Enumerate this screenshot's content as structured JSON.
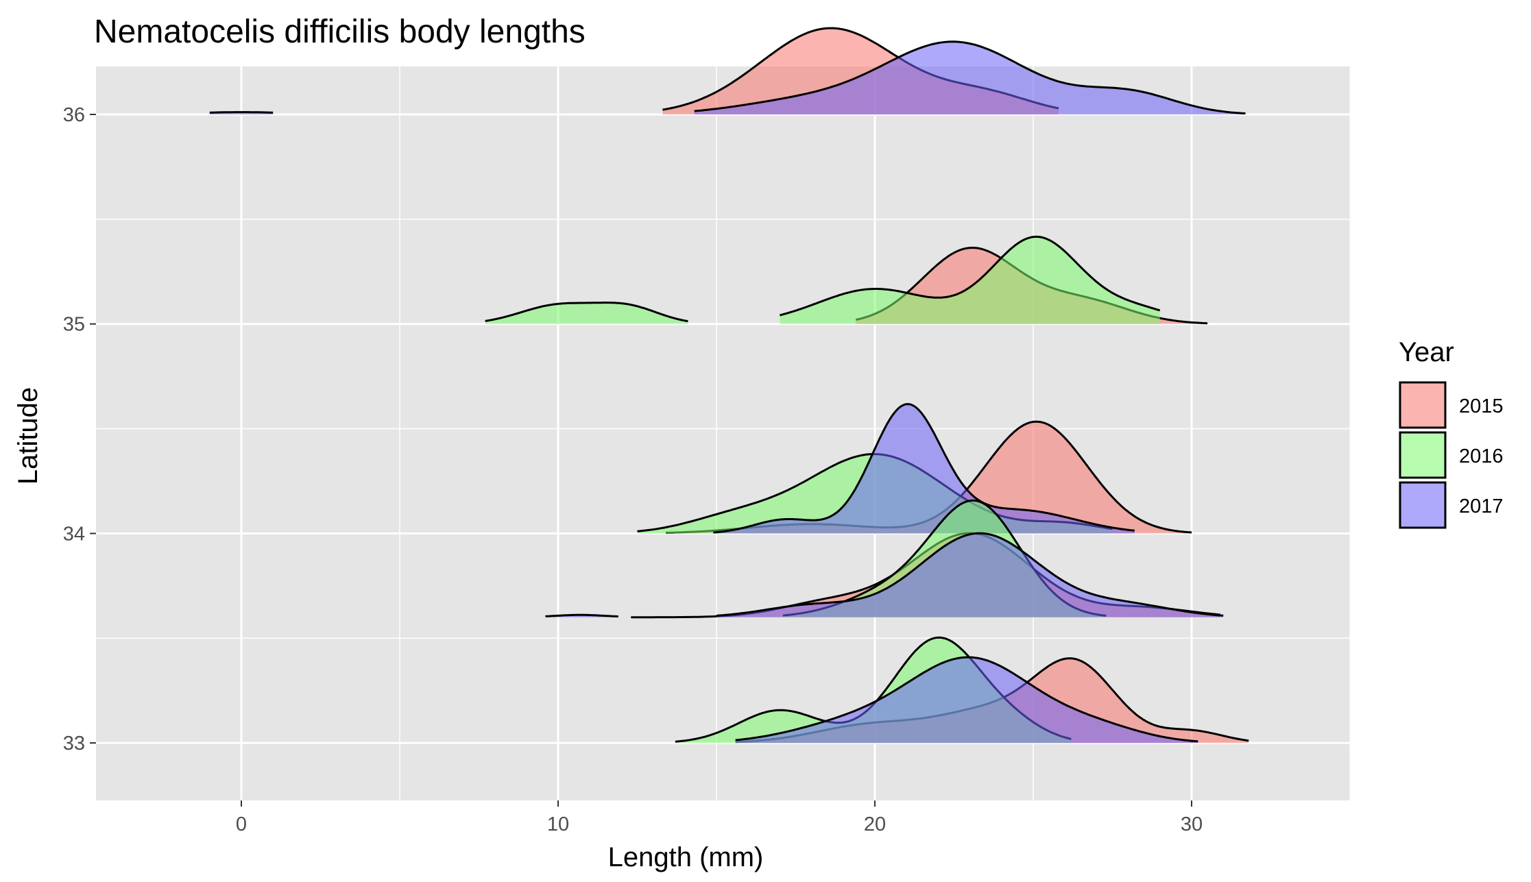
{
  "chart_data": {
    "type": "ridgeline",
    "title": "Nematocelis difficilis body lengths",
    "xlabel": "Length (mm)",
    "ylabel": "Latitude",
    "xlim": [
      -4.5,
      35
    ],
    "ylim": [
      32.7,
      36.25
    ],
    "x_ticks": [
      0,
      10,
      20,
      30
    ],
    "y_ticks": [
      33,
      34,
      35,
      36
    ],
    "grid": true,
    "legend": {
      "title": "Year",
      "position": "right",
      "entries": [
        "2015",
        "2016",
        "2017"
      ]
    },
    "colors": {
      "2015": "#F8766D",
      "2016": "#7CF96E",
      "2017": "#6C63F8",
      "panel_bg": "#E5E5E5"
    },
    "series": [
      {
        "group": "36",
        "year": "2015",
        "range": [
          13.3,
          25.8
        ],
        "peaks": [
          [
            18.6,
            0.37,
            2.2
          ],
          [
            23.5,
            0.08,
            1.5
          ]
        ]
      },
      {
        "group": "36",
        "year": "2017",
        "range": [
          14.3,
          31.7
        ],
        "peaks": [
          [
            17.5,
            0.05,
            2.0
          ],
          [
            22.5,
            0.31,
            2.3
          ],
          [
            28.0,
            0.09,
            1.5
          ]
        ]
      },
      {
        "group": "36",
        "year": "2017",
        "range": [
          -1.0,
          1.0
        ],
        "peaks": [
          [
            0.0,
            0.01,
            1.5
          ]
        ]
      },
      {
        "group": "35",
        "year": "2015",
        "range": [
          19.4,
          30.5
        ],
        "peaks": [
          [
            23.0,
            0.32,
            1.5
          ],
          [
            26.5,
            0.1,
            1.5
          ]
        ]
      },
      {
        "group": "35",
        "year": "2016",
        "range": [
          7.7,
          14.1
        ],
        "peaks": [
          [
            10.0,
            0.08,
            1.2
          ],
          [
            12.2,
            0.07,
            1.0
          ]
        ]
      },
      {
        "group": "35",
        "year": "2016",
        "range": [
          17.0,
          29.0
        ],
        "peaks": [
          [
            20.0,
            0.15,
            1.8
          ],
          [
            25.1,
            0.37,
            1.4
          ],
          [
            28.3,
            0.06,
            1.2
          ]
        ]
      },
      {
        "group": "34",
        "year": "2015",
        "range": [
          13.4,
          30.0
        ],
        "peaks": [
          [
            18.0,
            0.04,
            2.0
          ],
          [
            25.1,
            0.48,
            1.6
          ]
        ]
      },
      {
        "group": "34",
        "year": "2016",
        "range": [
          12.5,
          27.5
        ],
        "peaks": [
          [
            15.5,
            0.06,
            1.5
          ],
          [
            20.0,
            0.34,
            2.2
          ],
          [
            26.0,
            0.04,
            1.2
          ]
        ]
      },
      {
        "group": "34",
        "year": "2017",
        "range": [
          14.9,
          28.2
        ],
        "peaks": [
          [
            17.2,
            0.06,
            1.0
          ],
          [
            21.0,
            0.54,
            1.1
          ],
          [
            24.5,
            0.1,
            1.8
          ]
        ]
      },
      {
        "group": "33.6",
        "year": "2015",
        "range": [
          12.3,
          30.9
        ],
        "peaks": [
          [
            18.5,
            0.06,
            1.5
          ],
          [
            23.0,
            0.36,
            1.9
          ],
          [
            28.5,
            0.04,
            1.5
          ]
        ]
      },
      {
        "group": "33.6",
        "year": "2016",
        "range": [
          17.1,
          27.3
        ],
        "peaks": [
          [
            20.5,
            0.1,
            1.5
          ],
          [
            23.2,
            0.48,
            1.4
          ]
        ]
      },
      {
        "group": "33.6",
        "year": "2017",
        "range": [
          15.0,
          31.0
        ],
        "peaks": [
          [
            18.0,
            0.05,
            1.5
          ],
          [
            23.3,
            0.36,
            1.9
          ],
          [
            28.0,
            0.05,
            1.5
          ]
        ]
      },
      {
        "group": "33.6",
        "year": "2017",
        "range": [
          9.6,
          11.9
        ],
        "peaks": [
          [
            10.7,
            0.01,
            0.8
          ]
        ]
      },
      {
        "group": "33",
        "year": "2015",
        "range": [
          15.6,
          31.8
        ],
        "peaks": [
          [
            20.0,
            0.08,
            1.8
          ],
          [
            23.5,
            0.12,
            1.5
          ],
          [
            26.3,
            0.34,
            1.3
          ],
          [
            30.0,
            0.05,
            1.0
          ]
        ]
      },
      {
        "group": "33",
        "year": "2016",
        "range": [
          13.7,
          26.2
        ],
        "peaks": [
          [
            17.0,
            0.14,
            1.3
          ],
          [
            22.0,
            0.45,
            1.4
          ],
          [
            24.5,
            0.05,
            1.0
          ]
        ]
      },
      {
        "group": "33",
        "year": "2017",
        "range": [
          15.6,
          30.2
        ],
        "peaks": [
          [
            19.0,
            0.07,
            1.8
          ],
          [
            23.0,
            0.36,
            2.0
          ],
          [
            27.0,
            0.06,
            1.5
          ]
        ]
      }
    ]
  }
}
